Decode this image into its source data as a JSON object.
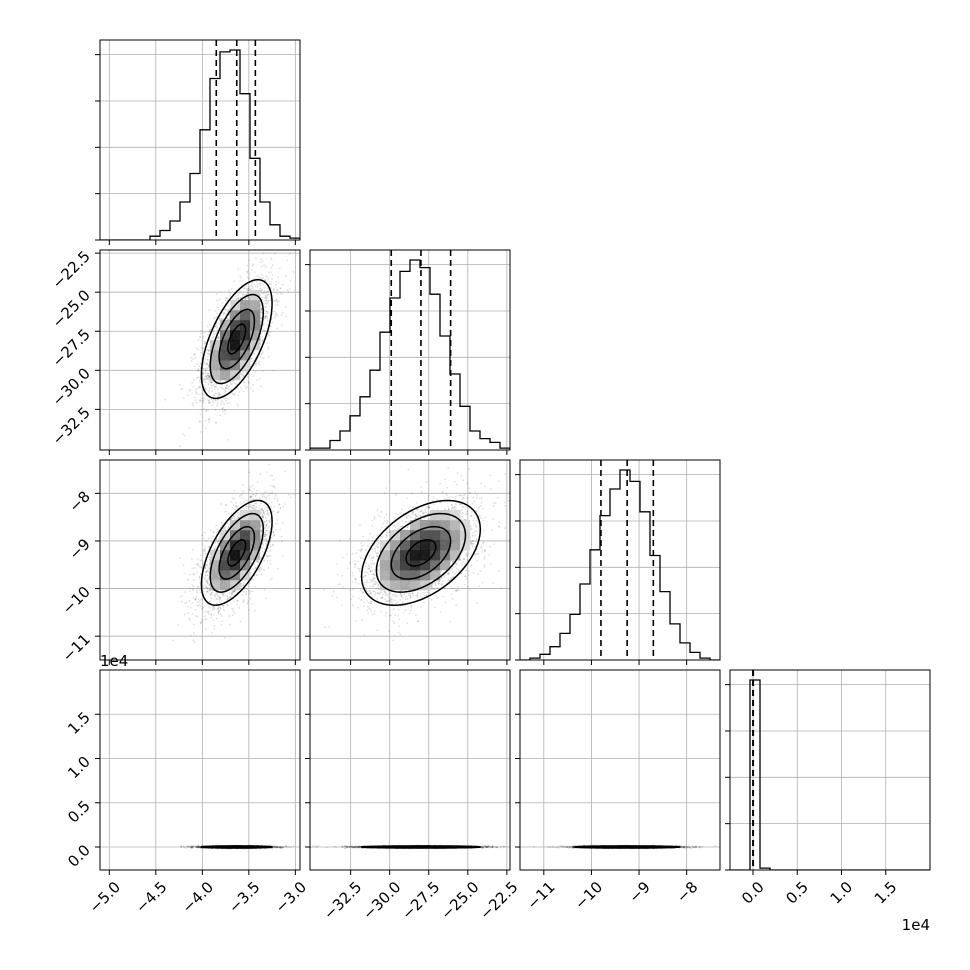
{
  "chart_data": {
    "type": "corner",
    "grid": true,
    "colors": {
      "ink": "#000000",
      "grid": "#b0b0b0",
      "frame": "#000000",
      "background": "#ffffff"
    },
    "parameters": [
      {
        "range": [
          -5.1,
          -2.95
        ],
        "ticks": [
          -5.0,
          -4.5,
          -4.0,
          -3.5,
          -3.0
        ],
        "tick_labels": [
          "−5.0",
          "−4.5",
          "−4.0",
          "−3.5",
          "−3.0"
        ],
        "quantiles": [
          -3.85,
          -3.63,
          -3.43
        ],
        "offset_label": ""
      },
      {
        "range": [
          -35.1,
          -22.3
        ],
        "ticks": [
          -32.5,
          -30.0,
          -27.5,
          -25.0,
          -22.5
        ],
        "tick_labels": [
          "−32.5",
          "−30.0",
          "−27.5",
          "−25.0",
          "−22.5"
        ],
        "quantiles": [
          -29.9,
          -28.0,
          -26.1
        ],
        "offset_label": ""
      },
      {
        "range": [
          -11.5,
          -7.3
        ],
        "ticks": [
          -11,
          -10,
          -9,
          -8
        ],
        "tick_labels": [
          "−11",
          "−10",
          "−9",
          "−8"
        ],
        "quantiles": [
          -9.8,
          -9.25,
          -8.7
        ],
        "offset_label": ""
      },
      {
        "range": [
          -2600,
          20000
        ],
        "ticks": [
          0,
          5000,
          10000,
          15000
        ],
        "tick_labels": [
          "0.0",
          "0.5",
          "1.0",
          "1.5"
        ],
        "quantiles": [
          -10,
          10,
          30
        ],
        "offset_label": "1e4"
      }
    ],
    "histograms": [
      {
        "param": 0,
        "edges": [
          -5.1,
          -4.9925,
          -4.885,
          -4.7775,
          -4.67,
          -4.5625,
          -4.455,
          -4.3475,
          -4.24,
          -4.1325,
          -4.025,
          -3.9175,
          -3.81,
          -3.7025,
          -3.595,
          -3.4875,
          -3.38,
          -3.2725,
          -3.165,
          -3.0575,
          -2.95
        ],
        "counts": [
          0,
          0,
          0,
          0,
          0,
          0.02,
          0.05,
          0.1,
          0.2,
          0.35,
          0.58,
          0.85,
          0.99,
          1.0,
          0.77,
          0.43,
          0.2,
          0.08,
          0.02,
          0.01
        ]
      },
      {
        "param": 1,
        "edges": [
          -35.1,
          -34.46,
          -33.82,
          -33.18,
          -32.54,
          -31.9,
          -31.26,
          -30.62,
          -29.98,
          -29.34,
          -28.7,
          -28.06,
          -27.42,
          -26.78,
          -26.14,
          -25.5,
          -24.86,
          -24.22,
          -23.58,
          -22.94,
          -22.3
        ],
        "counts": [
          0.01,
          0.01,
          0.05,
          0.1,
          0.18,
          0.28,
          0.42,
          0.62,
          0.8,
          0.94,
          1.0,
          0.96,
          0.82,
          0.6,
          0.4,
          0.23,
          0.1,
          0.06,
          0.04,
          0.01
        ]
      },
      {
        "param": 2,
        "edges": [
          -11.5,
          -11.29,
          -11.08,
          -10.87,
          -10.66,
          -10.45,
          -10.24,
          -10.03,
          -9.82,
          -9.61,
          -9.4,
          -9.19,
          -8.98,
          -8.77,
          -8.56,
          -8.35,
          -8.14,
          -7.93,
          -7.72,
          -7.51,
          -7.3
        ],
        "counts": [
          0.0,
          0.01,
          0.03,
          0.07,
          0.14,
          0.24,
          0.4,
          0.58,
          0.76,
          0.9,
          1.0,
          0.94,
          0.78,
          0.55,
          0.36,
          0.19,
          0.09,
          0.04,
          0.01,
          0.0
        ]
      },
      {
        "param": 3,
        "edges": [
          -2600,
          -1470,
          -340,
          790,
          1920,
          3050,
          4180,
          5310,
          6440,
          7570,
          8700,
          9830,
          10960,
          12090,
          13220,
          14350,
          15480,
          16610,
          17740,
          18870,
          20000
        ],
        "counts": [
          0,
          0,
          1.0,
          0.01,
          0,
          0,
          0,
          0,
          0,
          0,
          0,
          0,
          0,
          0,
          0,
          0,
          0,
          0,
          0,
          0
        ]
      }
    ],
    "scatter_panels": [
      {
        "x_param": 0,
        "y_param": 1,
        "center": [
          -3.63,
          -28.0
        ],
        "sigma": [
          0.19,
          1.9
        ],
        "rho": 0.6
      },
      {
        "x_param": 0,
        "y_param": 2,
        "center": [
          -3.63,
          -9.25
        ],
        "sigma": [
          0.19,
          0.55
        ],
        "rho": 0.6
      },
      {
        "x_param": 1,
        "y_param": 2,
        "center": [
          -28.0,
          -9.25
        ],
        "sigma": [
          1.9,
          0.55
        ],
        "rho": 0.45
      },
      {
        "x_param": 0,
        "y_param": 3,
        "center": [
          -3.63,
          0
        ],
        "sigma": [
          0.19,
          60
        ],
        "rho": 0
      },
      {
        "x_param": 1,
        "y_param": 3,
        "center": [
          -28.0,
          0
        ],
        "sigma": [
          1.9,
          60
        ],
        "rho": 0
      },
      {
        "x_param": 2,
        "y_param": 3,
        "center": [
          -9.25,
          0
        ],
        "sigma": [
          0.55,
          60
        ],
        "rho": 0
      }
    ],
    "contour_levels_sigma": [
      0.5,
      1.0,
      1.5,
      2.0
    ]
  }
}
